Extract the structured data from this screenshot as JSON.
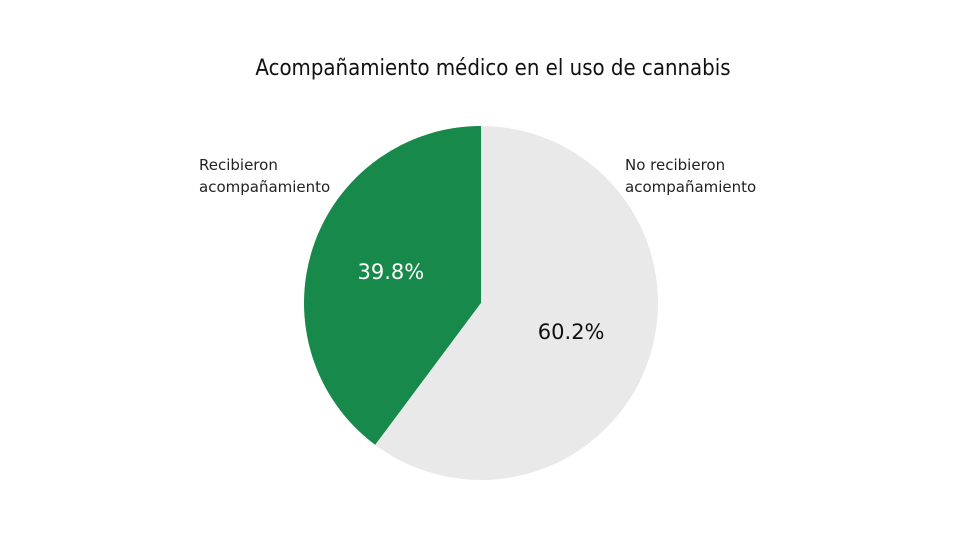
{
  "chart_data": {
    "type": "pie",
    "title": "Acompañamiento médico en el uso de cannabis",
    "categories": [
      "Recibieron acompañamiento",
      "No recibieron acompañamiento"
    ],
    "values": [
      39.8,
      60.2
    ],
    "value_labels": [
      "39.8%",
      "60.2%"
    ],
    "colors": [
      "#17894a",
      "#e8e9e8"
    ],
    "label_colors": [
      "#ffffff",
      "#111111"
    ]
  }
}
